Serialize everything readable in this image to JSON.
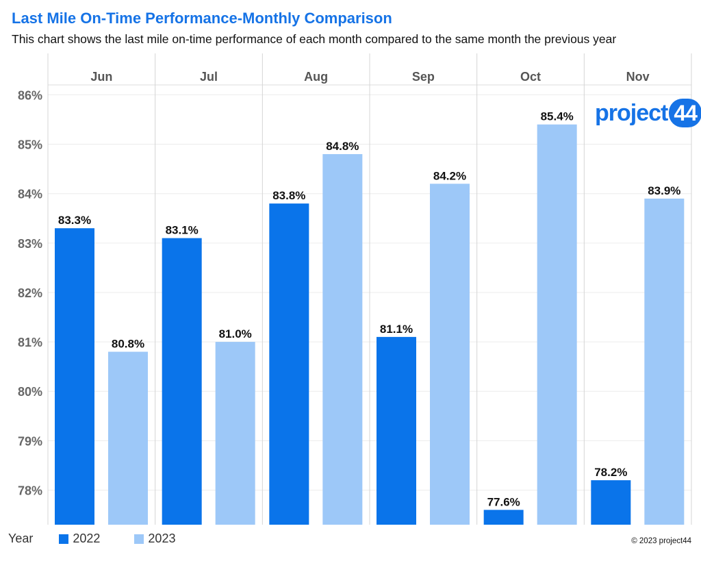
{
  "title": "Last Mile On-Time Performance-Monthly Comparison",
  "subtitle": "This chart shows the last mile on-time performance of each month compared to the same month the previous year",
  "logo": {
    "text": "project",
    "number": "44"
  },
  "copyright": "© 2023 project44",
  "colors": {
    "series_2022": "#0a74ea",
    "series_2023": "#9dc8f8",
    "title": "#1673e6"
  },
  "legend": {
    "title": "Year",
    "items": [
      "2022",
      "2023"
    ]
  },
  "chart_data": {
    "type": "bar",
    "categories": [
      "Jun",
      "Jul",
      "Aug",
      "Sep",
      "Oct",
      "Nov"
    ],
    "series": [
      {
        "name": "2022",
        "values": [
          83.3,
          83.1,
          83.8,
          81.1,
          77.6,
          78.2
        ],
        "labels": [
          "83.3%",
          "83.1%",
          "83.8%",
          "81.1%",
          "77.6%",
          "78.2%"
        ]
      },
      {
        "name": "2023",
        "values": [
          80.8,
          81.0,
          84.8,
          84.2,
          85.4,
          83.9
        ],
        "labels": [
          "80.8%",
          "81.0%",
          "84.8%",
          "84.2%",
          "85.4%",
          "83.9%"
        ]
      }
    ],
    "yticks": [
      78,
      79,
      80,
      81,
      82,
      83,
      84,
      85,
      86
    ],
    "ytick_labels": [
      "78%",
      "79%",
      "80%",
      "81%",
      "82%",
      "83%",
      "84%",
      "85%",
      "86%"
    ],
    "ylim": [
      77.3,
      86.2
    ],
    "grid": true,
    "legend_position": "bottom-left"
  }
}
